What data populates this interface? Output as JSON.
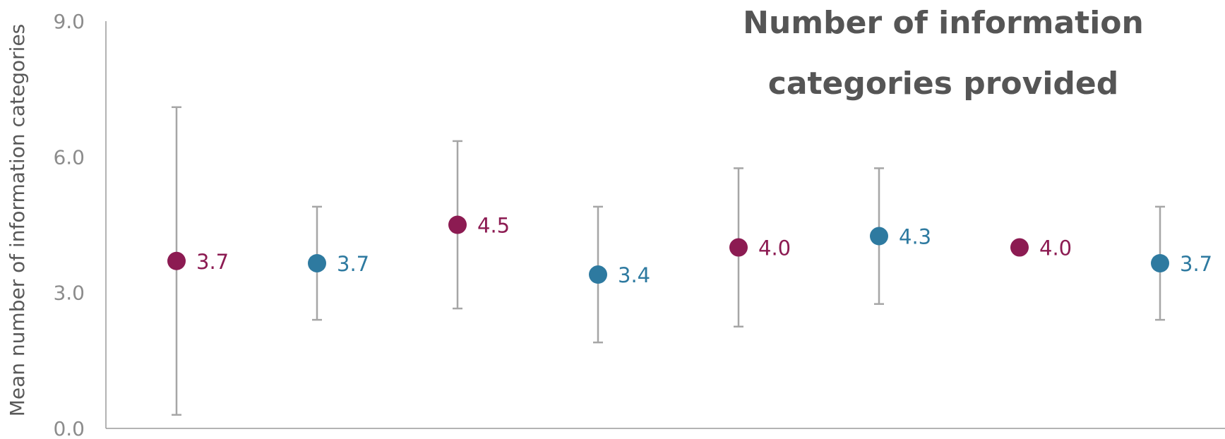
{
  "chart_data": {
    "type": "scatter",
    "title_lines": [
      "Number of information",
      "categories provided"
    ],
    "xlabel": "",
    "ylabel": "Mean number of information categories",
    "ylim": [
      0,
      9
    ],
    "y_ticks": [
      "0.0",
      "3.0",
      "6.0",
      "9.0"
    ],
    "grid": false,
    "points": [
      {
        "mean": 3.7,
        "label": "3.7",
        "err_low": 0.3,
        "err_high": 7.1,
        "color": "#8c1b52"
      },
      {
        "mean": 3.65,
        "label": "3.7",
        "err_low": 2.4,
        "err_high": 4.9,
        "color": "#2e7aa0"
      },
      {
        "mean": 4.5,
        "label": "4.5",
        "err_low": 2.65,
        "err_high": 6.35,
        "color": "#8c1b52"
      },
      {
        "mean": 3.4,
        "label": "3.4",
        "err_low": 1.9,
        "err_high": 4.9,
        "color": "#2e7aa0"
      },
      {
        "mean": 4.0,
        "label": "4.0",
        "err_low": 2.25,
        "err_high": 5.75,
        "color": "#8c1b52"
      },
      {
        "mean": 4.25,
        "label": "4.3",
        "err_low": 2.75,
        "err_high": 5.75,
        "color": "#2e7aa0"
      },
      {
        "mean": 4.0,
        "label": "4.0",
        "err_low": null,
        "err_high": null,
        "color": "#8c1b52"
      },
      {
        "mean": 3.65,
        "label": "3.7",
        "err_low": 2.4,
        "err_high": 4.9,
        "color": "#2e7aa0"
      }
    ]
  }
}
